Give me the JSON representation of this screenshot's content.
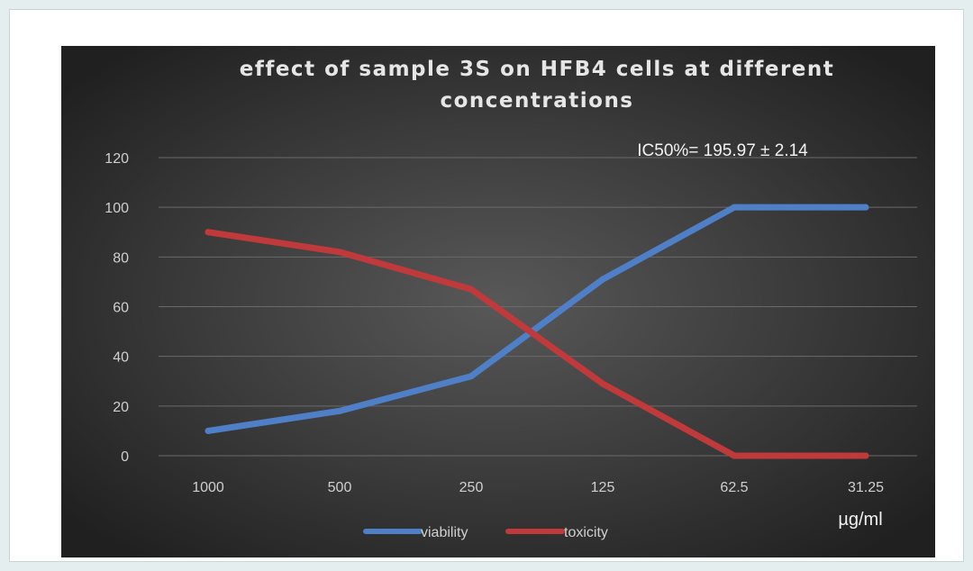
{
  "chart_data": {
    "type": "line",
    "title_line1": "effect of sample 3S on HFB4 cells at different",
    "title_line2": "concentrations",
    "annotation": "IC50%= 195.97 ± 2.14",
    "categories": [
      "1000",
      "500",
      "250",
      "125",
      "62.5",
      "31.25"
    ],
    "xlabel": "µg/ml",
    "ylabel": "",
    "ylim": [
      0,
      120
    ],
    "yticks": [
      "0",
      "20",
      "40",
      "60",
      "80",
      "100",
      "120"
    ],
    "grid": true,
    "legend_position": "bottom",
    "series": [
      {
        "name": "viability",
        "color": "#4f7fc6",
        "values": [
          10,
          18,
          32,
          71,
          100,
          100
        ]
      },
      {
        "name": "toxicity",
        "color": "#c0393b",
        "values": [
          90,
          82,
          67,
          29,
          0,
          0
        ]
      }
    ],
    "legend": [
      "viability",
      "toxicity"
    ]
  }
}
